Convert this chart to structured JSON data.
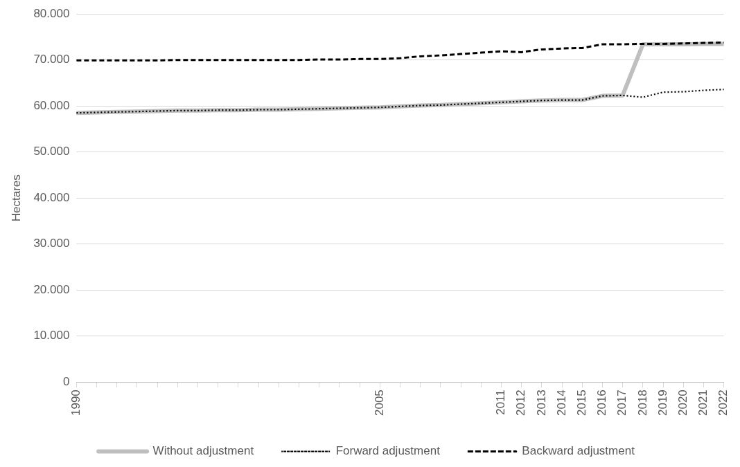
{
  "chart_data": {
    "type": "line",
    "ylabel": "Hectares",
    "categories": [
      "1990",
      null,
      null,
      null,
      null,
      null,
      null,
      null,
      null,
      null,
      null,
      null,
      null,
      null,
      null,
      "2005",
      null,
      null,
      null,
      null,
      null,
      "2011",
      "2012",
      "2013",
      "2014",
      "2015",
      "2016",
      "2017",
      "2018",
      "2019",
      "2020",
      "2021",
      "2022"
    ],
    "series": [
      {
        "name": "Without adjustment",
        "color": "#bfbfbf",
        "line_style": "solid",
        "values": [
          58500,
          58600,
          58700,
          58800,
          58900,
          59000,
          59000,
          59100,
          59100,
          59200,
          59200,
          59300,
          59400,
          59500,
          59600,
          59700,
          59900,
          60100,
          60200,
          60400,
          60600,
          60800,
          61000,
          61200,
          61300,
          61300,
          62200,
          62300,
          73400,
          73400,
          73400,
          73500,
          73500
        ]
      },
      {
        "name": "Forward adjustment",
        "color": "#000000",
        "line_style": "dotted",
        "values": [
          58500,
          58600,
          58700,
          58800,
          58900,
          59000,
          59000,
          59100,
          59100,
          59200,
          59200,
          59300,
          59400,
          59500,
          59600,
          59700,
          59900,
          60100,
          60200,
          60400,
          60600,
          60800,
          61000,
          61200,
          61300,
          61300,
          62200,
          62300,
          61900,
          63000,
          63100,
          63400,
          63600
        ]
      },
      {
        "name": "Backward adjustment",
        "color": "#000000",
        "line_style": "dashed",
        "values": [
          69900,
          69900,
          69900,
          69900,
          69900,
          70000,
          70000,
          70000,
          70000,
          70000,
          70000,
          70000,
          70100,
          70100,
          70200,
          70200,
          70400,
          70800,
          71000,
          71300,
          71600,
          71900,
          71700,
          72300,
          72500,
          72600,
          73400,
          73400,
          73500,
          73500,
          73600,
          73700,
          73800
        ]
      }
    ],
    "ylim": [
      0,
      80000
    ],
    "yticks": [
      0,
      {
        "value": 10000,
        "label": "10.000"
      },
      {
        "value": 20000,
        "label": "20.000"
      },
      {
        "value": 30000,
        "label": "30.000"
      },
      {
        "value": 40000,
        "label": "40.000"
      },
      {
        "value": 50000,
        "label": "50.000"
      },
      {
        "value": 60000,
        "label": "60.000"
      },
      {
        "value": 70000,
        "label": "70.000"
      },
      {
        "value": 80000,
        "label": "80.000"
      }
    ],
    "grid": "y",
    "legend": "bottom",
    "marker": "none"
  }
}
